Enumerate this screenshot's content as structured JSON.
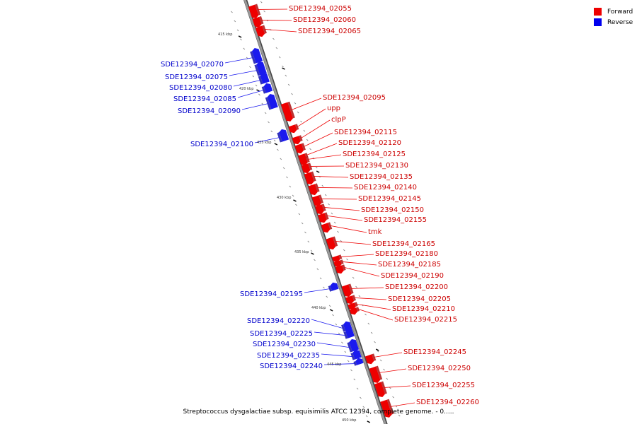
{
  "legend": {
    "forward_label": "Forward",
    "reverse_label": "Reverse",
    "forward_color": "#ee0000",
    "reverse_color": "#0000ee"
  },
  "caption": "Streptococcus dysgalactiae subsp. equisimilis ATCC 12394, complete genome. - 0.....",
  "colors": {
    "backbone": "#999999",
    "forward": "#ee0000",
    "reverse": "#1a1aee"
  },
  "kbp_labels": [
    "415 kbp",
    "420 kbp",
    "425 kbp",
    "430 kbp",
    "435 kbp",
    "440 kbp",
    "445 kbp",
    "450 kbp"
  ],
  "genes": [
    {
      "label": "SDE12394_02055",
      "strand": "forward"
    },
    {
      "label": "SDE12394_02060",
      "strand": "forward"
    },
    {
      "label": "SDE12394_02065",
      "strand": "forward"
    },
    {
      "label": "SDE12394_02070",
      "strand": "reverse"
    },
    {
      "label": "SDE12394_02075",
      "strand": "reverse"
    },
    {
      "label": "SDE12394_02080",
      "strand": "reverse"
    },
    {
      "label": "SDE12394_02085",
      "strand": "reverse"
    },
    {
      "label": "SDE12394_02090",
      "strand": "reverse"
    },
    {
      "label": "SDE12394_02095",
      "strand": "forward"
    },
    {
      "label": "upp",
      "strand": "forward"
    },
    {
      "label": "clpP",
      "strand": "forward"
    },
    {
      "label": "SDE12394_02100",
      "strand": "reverse"
    },
    {
      "label": "SDE12394_02115",
      "strand": "forward"
    },
    {
      "label": "SDE12394_02120",
      "strand": "forward"
    },
    {
      "label": "SDE12394_02125",
      "strand": "forward"
    },
    {
      "label": "SDE12394_02130",
      "strand": "forward"
    },
    {
      "label": "SDE12394_02135",
      "strand": "forward"
    },
    {
      "label": "SDE12394_02140",
      "strand": "forward"
    },
    {
      "label": "SDE12394_02145",
      "strand": "forward"
    },
    {
      "label": "SDE12394_02150",
      "strand": "forward"
    },
    {
      "label": "SDE12394_02155",
      "strand": "forward"
    },
    {
      "label": "tmk",
      "strand": "forward"
    },
    {
      "label": "SDE12394_02165",
      "strand": "forward"
    },
    {
      "label": "SDE12394_02180",
      "strand": "forward"
    },
    {
      "label": "SDE12394_02185",
      "strand": "forward"
    },
    {
      "label": "SDE12394_02190",
      "strand": "forward"
    },
    {
      "label": "SDE12394_02195",
      "strand": "reverse"
    },
    {
      "label": "SDE12394_02200",
      "strand": "forward"
    },
    {
      "label": "SDE12394_02205",
      "strand": "forward"
    },
    {
      "label": "SDE12394_02210",
      "strand": "forward"
    },
    {
      "label": "SDE12394_02215",
      "strand": "forward"
    },
    {
      "label": "SDE12394_02220",
      "strand": "reverse"
    },
    {
      "label": "SDE12394_02225",
      "strand": "reverse"
    },
    {
      "label": "SDE12394_02230",
      "strand": "reverse"
    },
    {
      "label": "SDE12394_02235",
      "strand": "reverse"
    },
    {
      "label": "SDE12394_02240",
      "strand": "reverse"
    },
    {
      "label": "SDE12394_02245",
      "strand": "forward"
    },
    {
      "label": "SDE12394_02250",
      "strand": "forward"
    },
    {
      "label": "SDE12394_02255",
      "strand": "forward"
    },
    {
      "label": "SDE12394_02260",
      "strand": "forward"
    }
  ]
}
